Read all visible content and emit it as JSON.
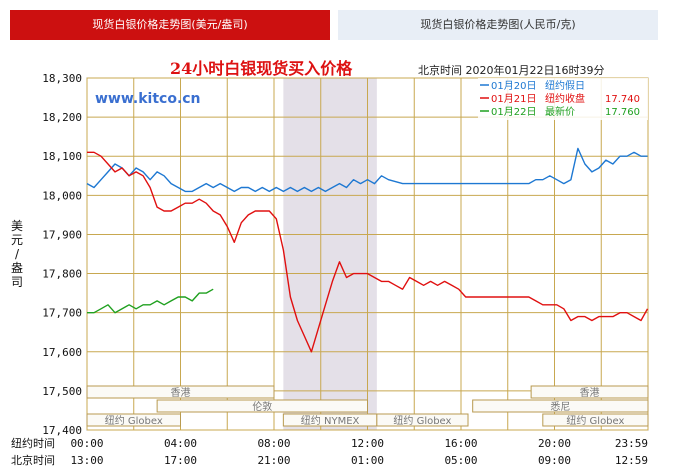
{
  "tabs": [
    {
      "label": "现货白银价格走势图(美元/盎司)",
      "active": true
    },
    {
      "label": "现货白银价格走势图(人民币/克)",
      "active": false
    }
  ],
  "chart_data": {
    "type": "line",
    "title": "24小时白银现货买入价格",
    "timestamp": "北京时间 2020年01月22日16时39分",
    "watermark": "www.kitco.cn",
    "ylabel": "美元/盎司",
    "ylim": [
      17.4,
      18.3
    ],
    "yticks": [
      "18,300",
      "18,200",
      "18,100",
      "18,000",
      "17,900",
      "17,800",
      "17,700",
      "17,600",
      "17,500",
      "17,400"
    ],
    "xlim": [
      0,
      24
    ],
    "x_rows": [
      {
        "label": "纽约时间",
        "ticks": [
          "00:00",
          "04:00",
          "08:00",
          "12:00",
          "16:00",
          "20:00",
          "23:59"
        ]
      },
      {
        "label": "北京时间",
        "ticks": [
          "13:00",
          "17:00",
          "21:00",
          "01:00",
          "05:00",
          "09:00",
          "12:59"
        ]
      }
    ],
    "grid": true,
    "nymex_session": [
      8.4,
      12.4
    ],
    "sessions": [
      {
        "name": "香港",
        "start": 0,
        "end": 8
      },
      {
        "name": "香港",
        "start": 19,
        "end": 24
      },
      {
        "name": "伦敦",
        "start": 3,
        "end": 12
      },
      {
        "name": "悉尼",
        "start": 16.5,
        "end": 24
      },
      {
        "name": "纽约 Globex",
        "start": 0,
        "end": 4
      },
      {
        "name": "纽约 NYMEX",
        "start": 8.4,
        "end": 12.4
      },
      {
        "name": "纽约 Globex",
        "start": 12.4,
        "end": 16.3
      },
      {
        "name": "纽约 Globex",
        "start": 19.5,
        "end": 24
      }
    ],
    "legend_position": "top-right",
    "series": [
      {
        "name": "01月20日",
        "label": "纽约假日",
        "value": "",
        "color": "#1e78d2",
        "x": [
          0,
          0.3,
          0.6,
          0.9,
          1.2,
          1.5,
          1.8,
          2.1,
          2.4,
          2.7,
          3,
          3.3,
          3.6,
          3.9,
          4.2,
          4.5,
          4.8,
          5.1,
          5.4,
          5.7,
          6,
          6.3,
          6.6,
          6.9,
          7.2,
          7.5,
          7.8,
          8.1,
          8.4,
          8.7,
          9,
          9.3,
          9.6,
          9.9,
          10.2,
          10.5,
          10.8,
          11.1,
          11.4,
          11.7,
          12,
          12.3,
          12.6,
          12.9,
          13.5,
          14,
          14.5,
          15,
          15.5,
          16,
          16.5,
          17,
          17.5,
          18,
          18.3,
          18.6,
          18.9,
          19.2,
          19.5,
          19.8,
          20.1,
          20.4,
          20.7,
          21,
          21.3,
          21.6,
          21.9,
          22.2,
          22.5,
          22.8,
          23.1,
          23.4,
          23.7,
          23.98
        ],
        "y": [
          18.03,
          18.02,
          18.04,
          18.06,
          18.08,
          18.07,
          18.05,
          18.07,
          18.06,
          18.04,
          18.06,
          18.05,
          18.03,
          18.02,
          18.01,
          18.01,
          18.02,
          18.03,
          18.02,
          18.03,
          18.02,
          18.01,
          18.02,
          18.02,
          18.01,
          18.02,
          18.01,
          18.02,
          18.01,
          18.02,
          18.01,
          18.02,
          18.01,
          18.02,
          18.01,
          18.02,
          18.03,
          18.02,
          18.04,
          18.03,
          18.04,
          18.03,
          18.05,
          18.04,
          18.03,
          18.03,
          18.03,
          18.03,
          18.03,
          18.03,
          18.03,
          18.03,
          18.03,
          18.03,
          18.03,
          18.03,
          18.03,
          18.04,
          18.04,
          18.05,
          18.04,
          18.03,
          18.04,
          18.12,
          18.08,
          18.06,
          18.07,
          18.09,
          18.08,
          18.1,
          18.1,
          18.11,
          18.1,
          18.1
        ]
      },
      {
        "name": "01月21日",
        "label": "纽约收盘",
        "value": "17.740",
        "color": "#e01010",
        "x": [
          0,
          0.3,
          0.6,
          0.9,
          1.2,
          1.5,
          1.8,
          2.1,
          2.4,
          2.7,
          3,
          3.3,
          3.6,
          3.9,
          4.2,
          4.5,
          4.8,
          5.1,
          5.4,
          5.7,
          6,
          6.3,
          6.6,
          6.9,
          7.2,
          7.5,
          7.8,
          8.1,
          8.4,
          8.7,
          9,
          9.3,
          9.6,
          9.9,
          10.2,
          10.5,
          10.8,
          11.1,
          11.4,
          11.7,
          12,
          12.3,
          12.6,
          12.9,
          13.2,
          13.5,
          13.8,
          14.1,
          14.4,
          14.7,
          15,
          15.3,
          15.6,
          15.9,
          16.2,
          16.5,
          16.8,
          17.1,
          17.4,
          17.7,
          18,
          18.3,
          18.6,
          18.9,
          19.2,
          19.5,
          19.8,
          20.1,
          20.4,
          20.7,
          21,
          21.3,
          21.6,
          21.9,
          22.2,
          22.5,
          22.8,
          23.1,
          23.4,
          23.7,
          23.98
        ],
        "y": [
          18.11,
          18.11,
          18.1,
          18.08,
          18.06,
          18.07,
          18.05,
          18.06,
          18.05,
          18.02,
          17.97,
          17.96,
          17.96,
          17.97,
          17.98,
          17.98,
          17.99,
          17.98,
          17.96,
          17.95,
          17.92,
          17.88,
          17.93,
          17.95,
          17.96,
          17.96,
          17.96,
          17.94,
          17.86,
          17.74,
          17.68,
          17.64,
          17.6,
          17.66,
          17.72,
          17.78,
          17.83,
          17.79,
          17.8,
          17.8,
          17.8,
          17.79,
          17.78,
          17.78,
          17.77,
          17.76,
          17.79,
          17.78,
          17.77,
          17.78,
          17.77,
          17.78,
          17.77,
          17.76,
          17.74,
          17.74,
          17.74,
          17.74,
          17.74,
          17.74,
          17.74,
          17.74,
          17.74,
          17.74,
          17.73,
          17.72,
          17.72,
          17.72,
          17.71,
          17.68,
          17.69,
          17.69,
          17.68,
          17.69,
          17.69,
          17.69,
          17.7,
          17.7,
          17.69,
          17.68,
          17.71
        ]
      },
      {
        "name": "01月22日",
        "label": "最新价",
        "value": "17.760",
        "color": "#1fa01f",
        "x": [
          0,
          0.3,
          0.6,
          0.9,
          1.2,
          1.5,
          1.8,
          2.1,
          2.4,
          2.7,
          3,
          3.3,
          3.6,
          3.9,
          4.2,
          4.5,
          4.8,
          5.1,
          5.4
        ],
        "y": [
          17.7,
          17.7,
          17.71,
          17.72,
          17.7,
          17.71,
          17.72,
          17.71,
          17.72,
          17.72,
          17.73,
          17.72,
          17.73,
          17.74,
          17.74,
          17.73,
          17.75,
          17.75,
          17.76
        ]
      }
    ]
  }
}
